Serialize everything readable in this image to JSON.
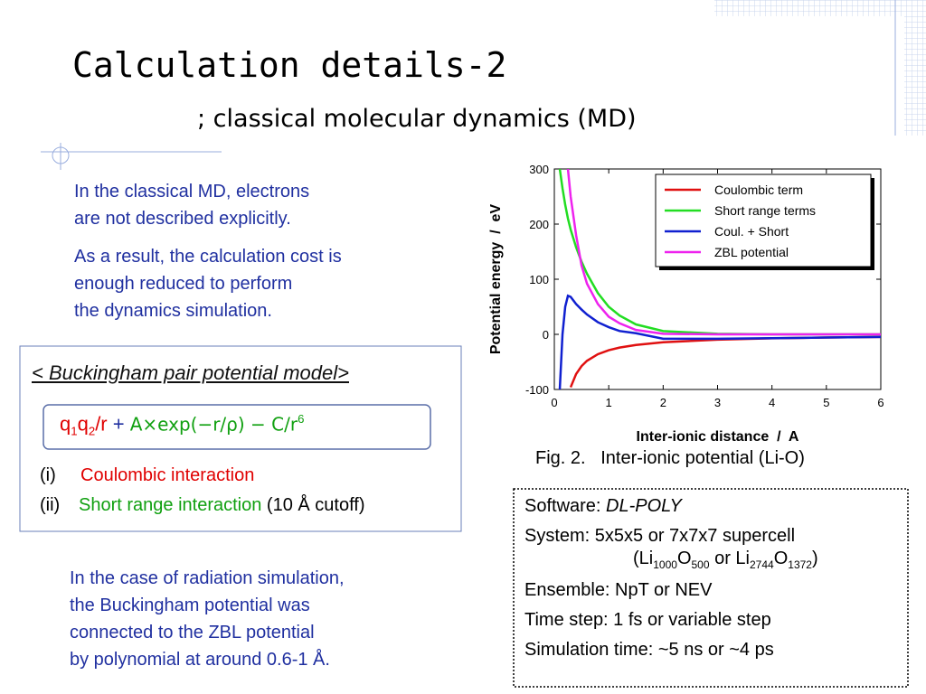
{
  "header": {
    "title": "Calculation details-2",
    "subtitle": "; classical molecular dynamics (MD)"
  },
  "intro": [
    "In the classical MD, electrons",
    "are not described explicitly.",
    "As a result, the calculation cost is",
    "enough reduced to perform",
    "the dynamics simulation."
  ],
  "model": {
    "heading": "< Buckingham pair potential model>",
    "formula": [
      "q",
      "1",
      "q",
      "2",
      "/r",
      " + ",
      "A×exp(−r/ρ) − C/r",
      "6"
    ],
    "items": [
      [
        "(i)",
        "Coulombic interaction"
      ],
      [
        "(ii)",
        "Short range interaction",
        "(10 Å cutoff)"
      ]
    ]
  },
  "note": [
    "In the case of radiation simulation,",
    "the Buckingham potential was",
    "connected to the ZBL potential",
    "by polynomial at around 0.6-1 Å."
  ],
  "caption": "Fig. 2.   Inter-ionic potential (Li-O)",
  "info": {
    "software": [
      "Software: ",
      "DL-POLY"
    ],
    "system": [
      "System: 5x5x5 or 7x7x7 supercell",
      "(Li",
      "1000",
      "O",
      "500",
      " or Li",
      "2744",
      "O",
      "1372",
      ")"
    ],
    "lines": [
      "Ensemble: NpT or NEV",
      "Time step: 1 fs or variable step",
      "Simulation time:  ~5 ns or ~4 ps"
    ]
  },
  "chart_data": {
    "type": "line",
    "xlabel": "Inter-ionic distance  /  A",
    "ylabel": "Potential energy  /  eV",
    "x": [
      0.1,
      0.15,
      0.2,
      0.25,
      0.3,
      0.4,
      0.5,
      0.6,
      0.8,
      1,
      1.2,
      1.5,
      2,
      3,
      4,
      5,
      6
    ],
    "series": [
      {
        "name": "Coulombic term",
        "color": "#e01010",
        "values": [
          null,
          null,
          null,
          null,
          -96,
          -72,
          -57.6,
          -48,
          -36,
          -28.8,
          -24,
          -19.2,
          -14.4,
          -9.6,
          -7.2,
          -5.8,
          -4.8
        ]
      },
      {
        "name": "Short range terms",
        "color": "#22dd22",
        "values": [
          300,
          265,
          235,
          210,
          190,
          158,
          132,
          110,
          75,
          50,
          34,
          18,
          6,
          1,
          0,
          0,
          0
        ]
      },
      {
        "name": "Coul. + Short",
        "color": "#1020d0",
        "values": [
          -100,
          0,
          50,
          70,
          68,
          55,
          45,
          36,
          22,
          13,
          6,
          2,
          -8,
          -8,
          -7,
          -5.8,
          -4.8
        ]
      },
      {
        "name": "ZBL potential",
        "color": "#ee22ee",
        "values": [
          null,
          null,
          null,
          300,
          250,
          180,
          125,
          92,
          55,
          32,
          20,
          8,
          1,
          0,
          0,
          0,
          0
        ]
      }
    ],
    "xlim": [
      0,
      6
    ],
    "ylim": [
      -100,
      300
    ],
    "xticks": [
      0,
      1,
      2,
      3,
      4,
      5,
      6
    ],
    "yticks": [
      -100,
      0,
      100,
      200,
      300
    ],
    "legend": "upper right"
  }
}
